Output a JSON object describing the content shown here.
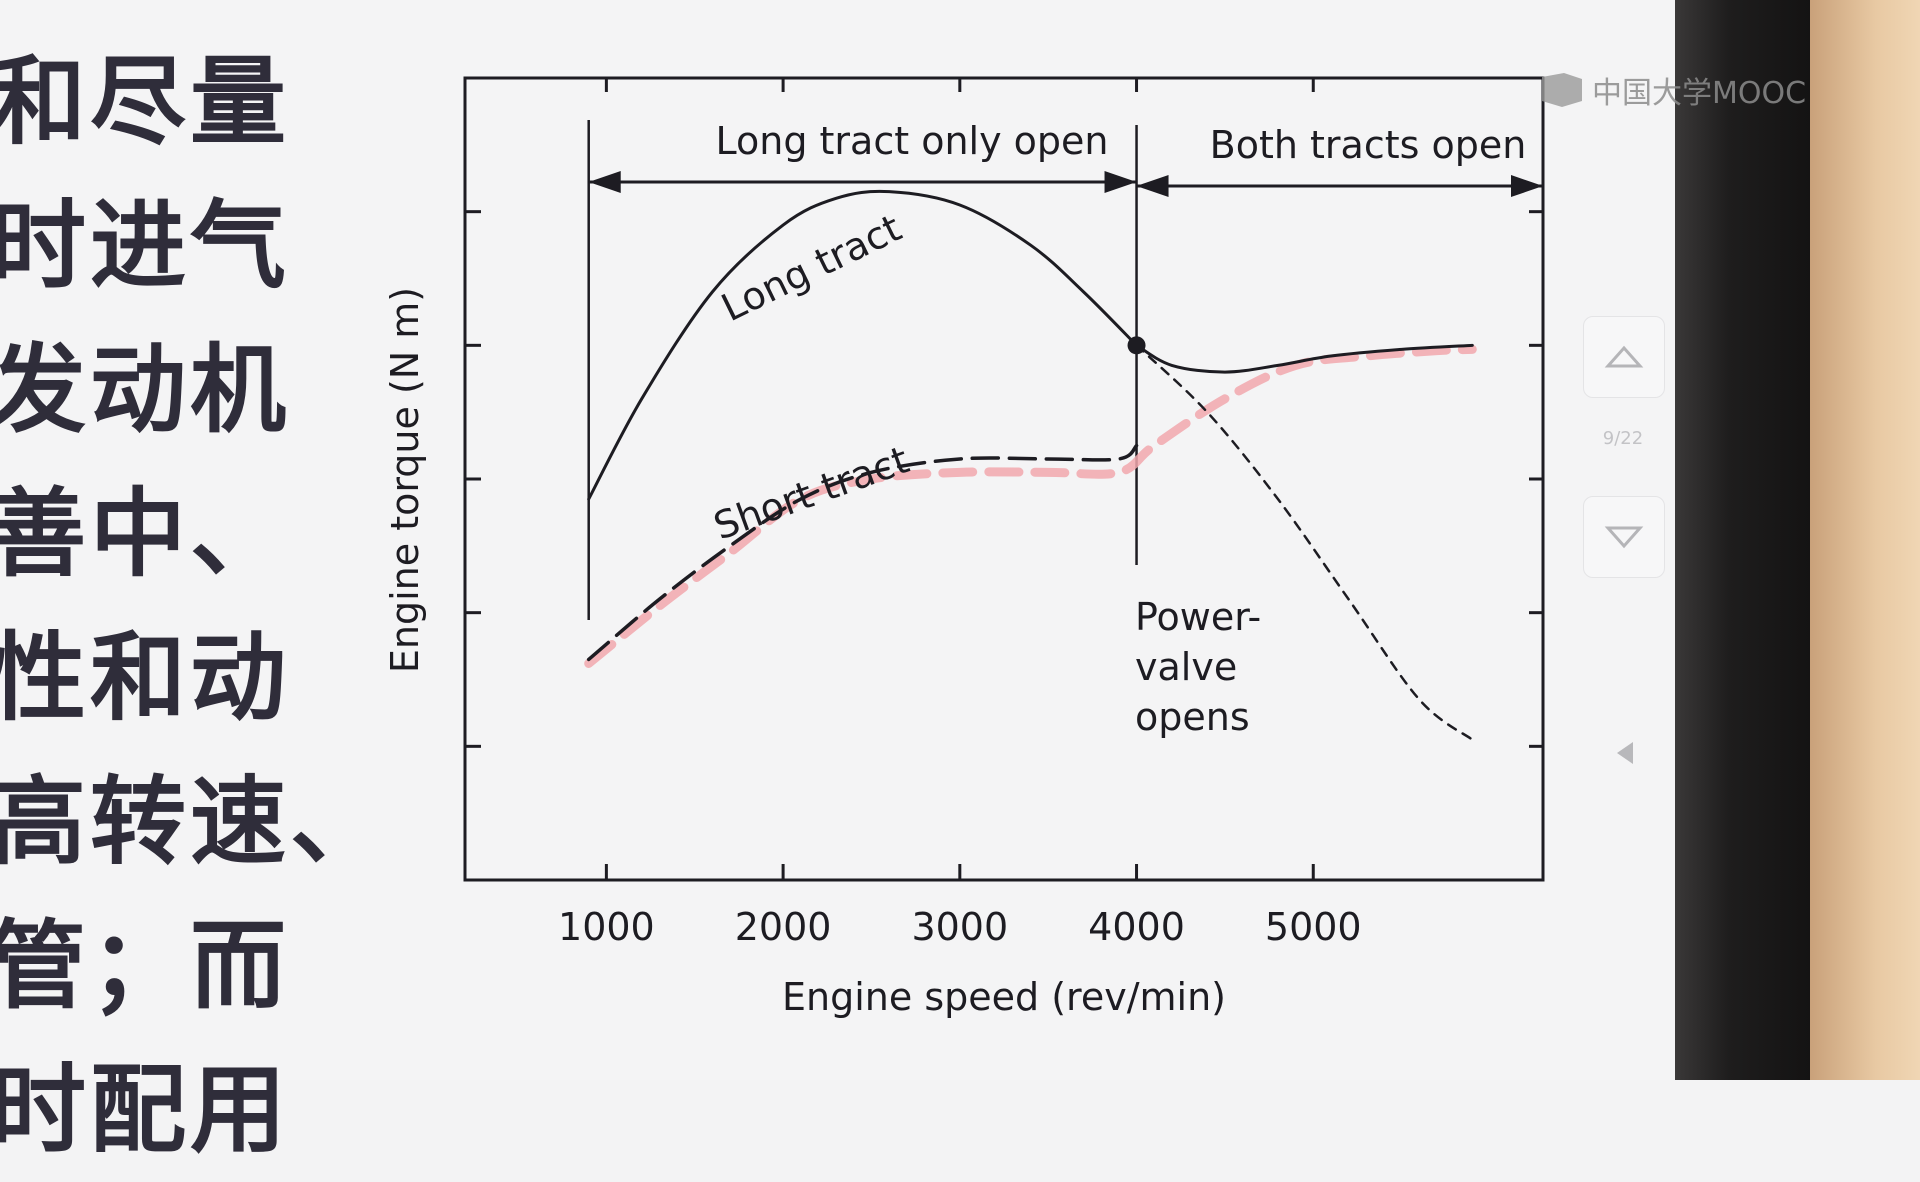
{
  "slide_text": {
    "lines": [
      "和尽量",
      "时进气",
      "发动机",
      "善中、",
      "性和动",
      "高转速、",
      "管；而",
      "时配用"
    ]
  },
  "branding": {
    "logo_text": "中国大学MOOC"
  },
  "navigation": {
    "page_indicator": "9/22",
    "up_icon": "chevron-up-icon",
    "down_icon": "chevron-down-icon",
    "side_icon": "triangle-left-icon"
  },
  "colors": {
    "ink": "#1d1c22",
    "highlight": "#f1a7ad"
  },
  "chart_data": {
    "type": "line",
    "xlabel": "Engine speed (rev/min)",
    "ylabel": "Engine torque (N m)",
    "x_ticks": [
      1000,
      2000,
      3000,
      4000,
      5000
    ],
    "xlim": [
      200,
      6300
    ],
    "ylim": [
      0,
      6
    ],
    "y_tick_values": [
      1,
      2,
      3,
      4,
      5
    ],
    "y_tick_labels_shown": false,
    "grid": false,
    "series": [
      {
        "name": "Long tract",
        "style": "solid",
        "x": [
          900,
          1200,
          1600,
          2000,
          2300,
          2600,
          3000,
          3400,
          3700,
          4000
        ],
        "y": [
          2.85,
          3.6,
          4.4,
          4.9,
          5.1,
          5.15,
          5.05,
          4.75,
          4.4,
          4.0
        ]
      },
      {
        "name": "Long tract",
        "style": "short-dashed",
        "x": [
          4000,
          4400,
          4800,
          5200,
          5600,
          5900
        ],
        "y": [
          4.0,
          3.5,
          2.85,
          2.1,
          1.35,
          1.05
        ]
      },
      {
        "name": "Short tract",
        "style": "long-dashed",
        "x": [
          900,
          1300,
          1700,
          2100,
          2500,
          3000,
          3500,
          3900,
          4000
        ],
        "y": [
          1.65,
          2.1,
          2.5,
          2.85,
          3.05,
          3.15,
          3.15,
          3.15,
          3.25
        ]
      },
      {
        "name": "Both tracts open",
        "style": "solid",
        "x": [
          4000,
          4200,
          4500,
          4800,
          5100,
          5500,
          5900
        ],
        "y": [
          4.0,
          3.85,
          3.8,
          3.85,
          3.92,
          3.97,
          4.0
        ]
      },
      {
        "name": "Highlight (hand-drawn)",
        "style": "dashed-pink",
        "x": [
          900,
          1300,
          1700,
          2100,
          2500,
          3000,
          3500,
          3900,
          4100,
          4500,
          4900,
          5300,
          5700,
          5900
        ],
        "y": [
          1.62,
          2.05,
          2.45,
          2.85,
          3.0,
          3.05,
          3.05,
          3.05,
          3.25,
          3.6,
          3.85,
          3.92,
          3.96,
          3.97
        ]
      }
    ],
    "annotations": {
      "curve_long": "Long tract",
      "curve_short": "Short tract",
      "region_left": "Long tract only open",
      "region_right": "Both tracts open",
      "power_valve": [
        "Power-",
        "valve",
        "opens"
      ]
    },
    "markers": {
      "power_valve_point": {
        "x": 4000,
        "y": 4.0
      }
    },
    "region_boundaries_x": [
      900,
      4000,
      6300
    ]
  }
}
